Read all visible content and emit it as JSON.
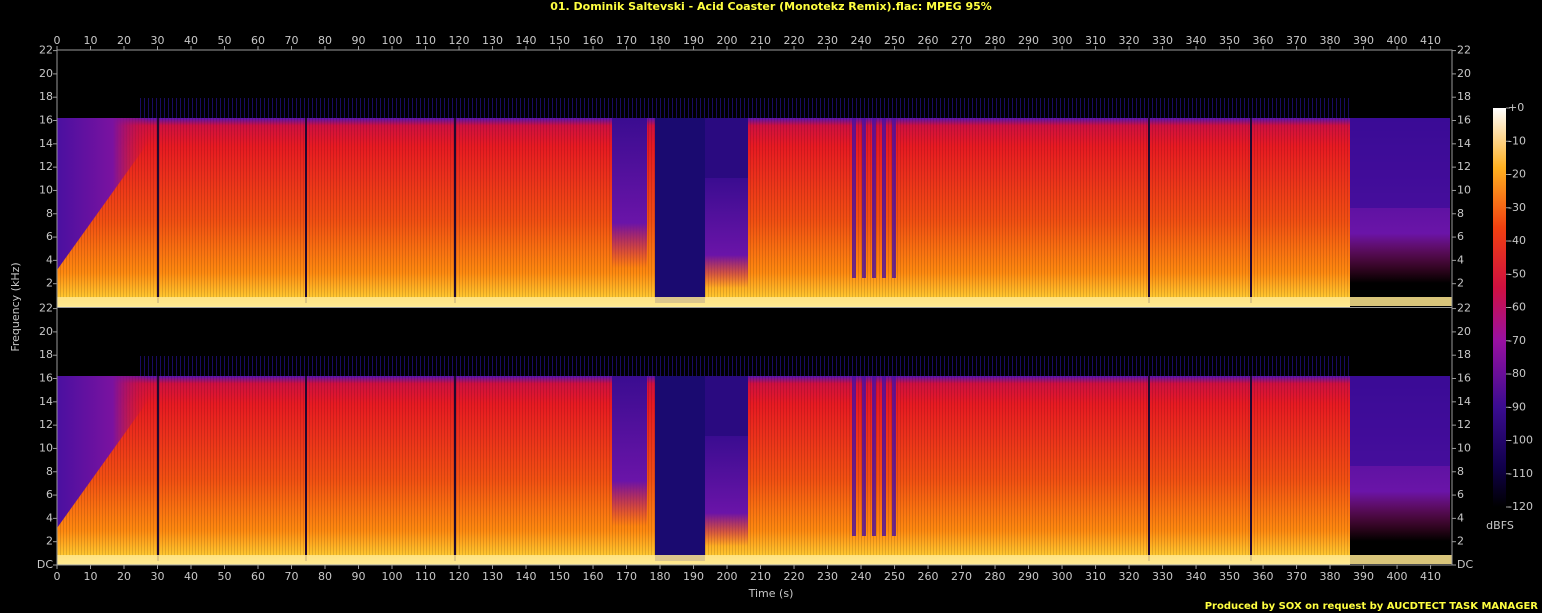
{
  "chart_data": {
    "type": "spectrogram",
    "title": "01. Dominik Saltevski - Acid Coaster (Monotekz Remix).flac: MPEG 95%",
    "x_label": "Time (s)",
    "y_label": "Frequency (kHz)",
    "xlim": [
      0,
      416.4
    ],
    "xticks": [
      0,
      10,
      20,
      30,
      40,
      50,
      60,
      70,
      80,
      90,
      100,
      110,
      120,
      130,
      140,
      150,
      160,
      170,
      180,
      190,
      200,
      210,
      220,
      230,
      240,
      250,
      260,
      270,
      280,
      290,
      300,
      310,
      320,
      330,
      340,
      350,
      360,
      370,
      380,
      390,
      400,
      410
    ],
    "channels": [
      {
        "ylim": [
          0,
          22.05
        ],
        "yticks": [
          2,
          4,
          6,
          8,
          10,
          12,
          14,
          16,
          18,
          20,
          22
        ]
      },
      {
        "ylim": [
          0,
          22.05
        ],
        "yticks": [
          {
            "value": 0,
            "label": "DC"
          },
          2,
          4,
          6,
          8,
          10,
          12,
          14,
          16,
          18,
          20,
          22
        ]
      }
    ],
    "colorbar": {
      "label": "dBFS",
      "lim": [
        -120,
        0
      ],
      "ticks": [
        {
          "value": 0,
          "label": "+0"
        },
        -10,
        -20,
        -30,
        -40,
        -50,
        -60,
        -70,
        -80,
        -90,
        -100,
        -110,
        -120
      ]
    },
    "footer": "Produced by SOX on request by AUCDTECT TASK MANAGER"
  }
}
